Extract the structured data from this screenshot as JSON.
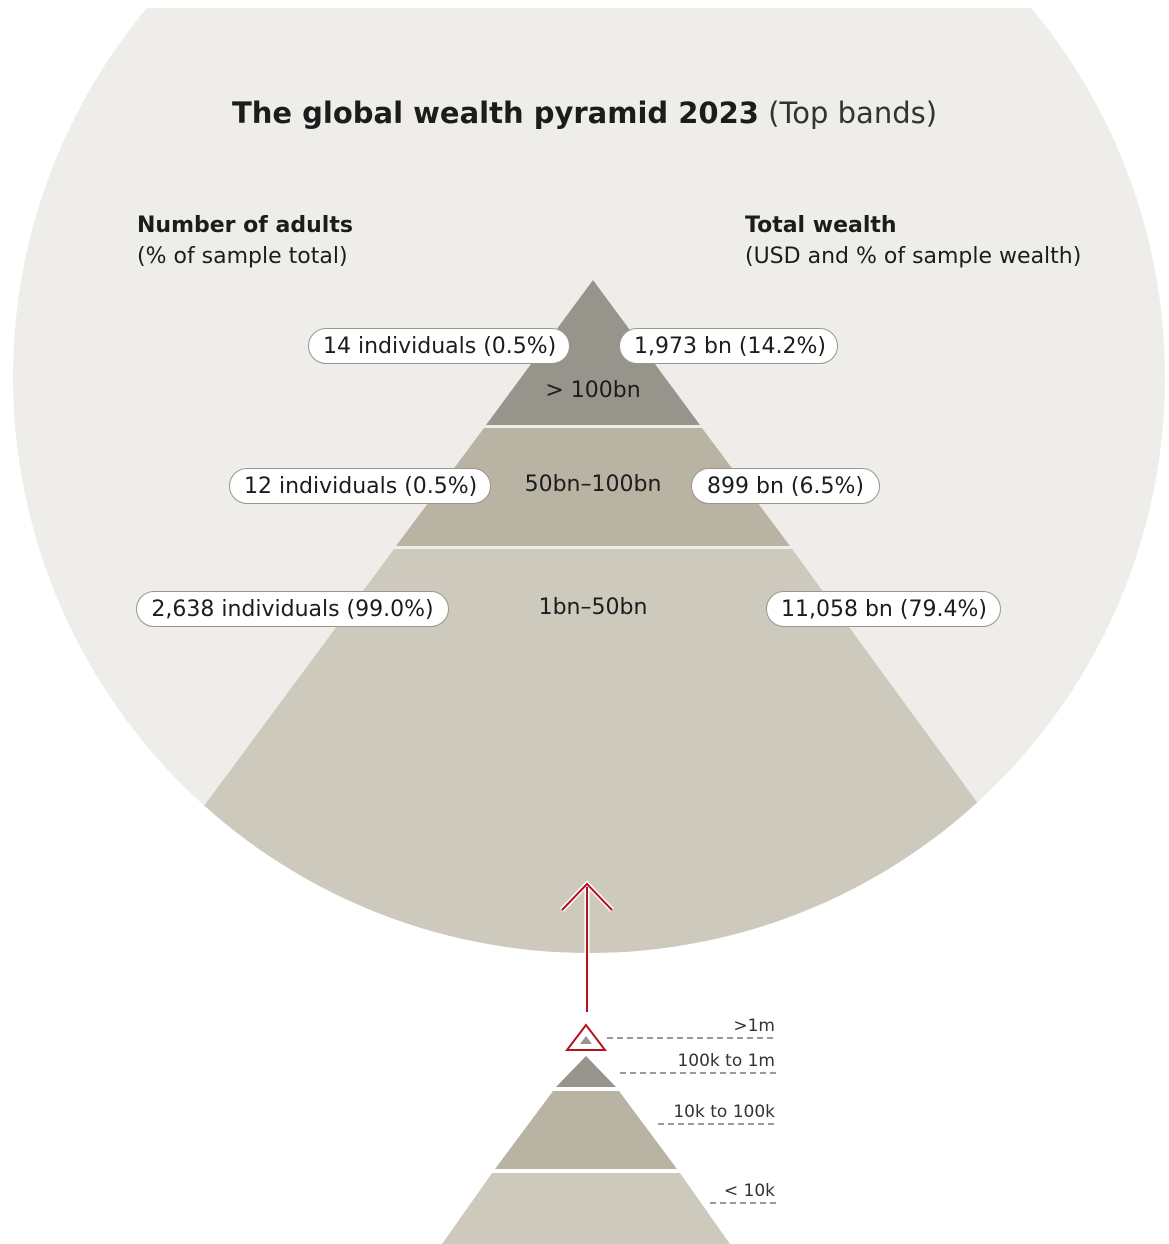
{
  "title": {
    "main": "The global wealth pyramid 2023",
    "sub": "(Top bands)"
  },
  "left_header": {
    "title": "Number of adults",
    "subtitle": "(% of sample total)"
  },
  "right_header": {
    "title": "Total wealth",
    "subtitle": "(USD and % of sample wealth)"
  },
  "bands": [
    {
      "label": "> 100bn",
      "adults": "14 individuals (0.5%)",
      "wealth": "1,973 bn (14.2%)",
      "color": "#97958b"
    },
    {
      "label": "50bn–100bn",
      "adults": "12 individuals (0.5%)",
      "wealth": "899 bn (6.5%)",
      "color": "#b8b3a3"
    },
    {
      "label": "1bn–50bn",
      "adults": "2,638 individuals (99.0%)",
      "wealth": "11,058 bn (79.4%)",
      "color": "#cdc9bd"
    }
  ],
  "small_pyramid": {
    "labels": [
      ">1m",
      "100k to 1m",
      "10k to 100k",
      "< 10k"
    ],
    "colors": [
      "#97958b",
      "#b8b3a3",
      "#cdc9bd"
    ]
  },
  "colors": {
    "circle": "#eeede9",
    "accent": "#b5121b"
  }
}
